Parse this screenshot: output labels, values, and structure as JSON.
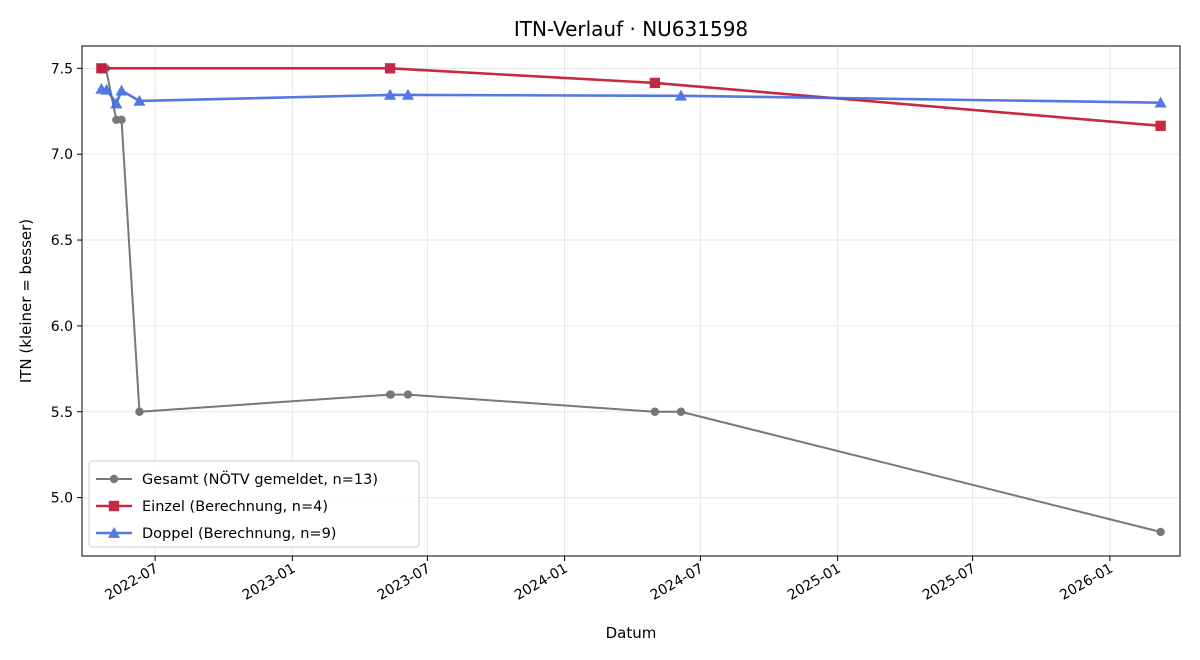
{
  "chart_data": {
    "type": "line",
    "title": "ITN-Verlauf · NU631598",
    "xlabel": "Datum",
    "ylabel": "ITN  (kleiner = besser)",
    "xlim": [
      "2022-03-25",
      "2026-04-05"
    ],
    "ylim": [
      4.66,
      7.63
    ],
    "yticks": [
      "5.0",
      "5.5",
      "6.0",
      "6.5",
      "7.0",
      "7.5"
    ],
    "xticks": [
      "2022-07-01",
      "2023-01-01",
      "2023-07-01",
      "2024-01-01",
      "2024-07-01",
      "2025-01-01",
      "2025-07-01",
      "2026-01-01"
    ],
    "xtick_labels": [
      "2022-07",
      "2023-01",
      "2023-07",
      "2024-01",
      "2024-07",
      "2025-01",
      "2025-07",
      "2026-01"
    ],
    "grid": true,
    "legend_position": "lower-left",
    "series": [
      {
        "name": "Gesamt (NÖTV gemeldet, n=13)",
        "color": "#444444",
        "marker": "circle",
        "points": [
          {
            "x": "2022-04-20",
            "y": 7.5
          },
          {
            "x": "2022-04-26",
            "y": 7.5
          },
          {
            "x": "2022-05-10",
            "y": 7.2
          },
          {
            "x": "2022-05-17",
            "y": 7.2
          },
          {
            "x": "2022-06-10",
            "y": 5.5
          },
          {
            "x": "2023-05-12",
            "y": 5.6
          },
          {
            "x": "2023-05-13",
            "y": 5.6
          },
          {
            "x": "2023-06-05",
            "y": 5.6
          },
          {
            "x": "2024-05-01",
            "y": 5.5
          },
          {
            "x": "2024-06-05",
            "y": 5.5
          },
          {
            "x": "2026-03-10",
            "y": 4.8
          }
        ]
      },
      {
        "name": "Einzel (Berechnung, n=4)",
        "color": "#c41e3a",
        "marker": "square",
        "points": [
          {
            "x": "2022-04-20",
            "y": 7.5
          },
          {
            "x": "2023-05-12",
            "y": 7.5
          },
          {
            "x": "2024-05-01",
            "y": 7.415
          },
          {
            "x": "2026-03-10",
            "y": 7.165
          }
        ]
      },
      {
        "name": "Doppel (Berechnung, n=9)",
        "color": "#4169e1",
        "marker": "triangle",
        "points": [
          {
            "x": "2022-04-20",
            "y": 7.38
          },
          {
            "x": "2022-04-27",
            "y": 7.375
          },
          {
            "x": "2022-05-10",
            "y": 7.295
          },
          {
            "x": "2022-05-17",
            "y": 7.37
          },
          {
            "x": "2022-06-10",
            "y": 7.31
          },
          {
            "x": "2023-05-12",
            "y": 7.345
          },
          {
            "x": "2023-06-05",
            "y": 7.345
          },
          {
            "x": "2024-06-05",
            "y": 7.34
          },
          {
            "x": "2026-03-10",
            "y": 7.3
          }
        ]
      }
    ]
  }
}
